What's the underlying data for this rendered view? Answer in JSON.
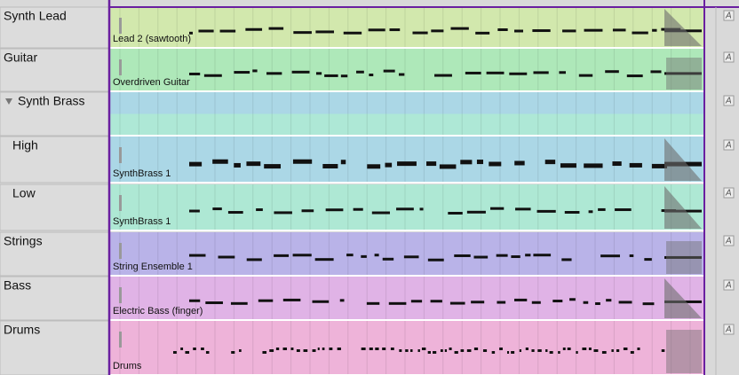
{
  "tracks": [
    {
      "name": "Synth Lead",
      "instrument": "Lead 2 (sawtooth)"
    },
    {
      "name": "Guitar",
      "instrument": "Overdriven Guitar"
    },
    {
      "name": "Synth Brass"
    },
    {
      "name": "High",
      "instrument": "SynthBrass 1"
    },
    {
      "name": "Low",
      "instrument": "SynthBrass 1"
    },
    {
      "name": "Strings",
      "instrument": "String Ensemble 1"
    },
    {
      "name": "Bass",
      "instrument": "Electric Bass (finger)"
    },
    {
      "name": "Drums",
      "instrument": "Drums"
    }
  ],
  "automation_button": "A"
}
